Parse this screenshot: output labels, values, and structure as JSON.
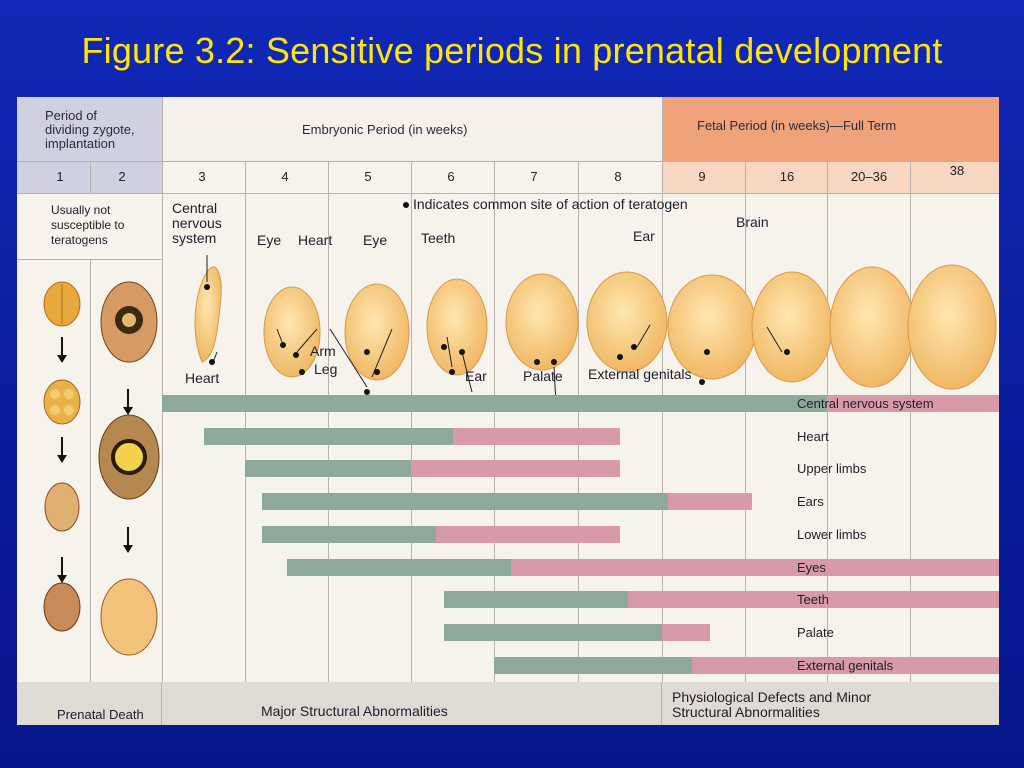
{
  "slide": {
    "title": "Figure 3.2: Sensitive periods in prenatal development"
  },
  "header": {
    "zygote_period": "Period of\ndividing zygote,\nimplantation",
    "embryonic_period": "Embryonic Period (in weeks)",
    "fetal_period": "Fetal Period (in weeks)—Full Term"
  },
  "weeks": [
    "1",
    "2",
    "3",
    "4",
    "5",
    "6",
    "7",
    "8",
    "9",
    "16",
    "20–36",
    "38"
  ],
  "notes": {
    "not_susceptible": "Usually not\nsusceptible to\nteratogens",
    "dot_legend": "Indicates common site of action of teratogen"
  },
  "site_labels": {
    "cns": "Central\nnervous\nsystem",
    "heart": "Heart",
    "eye1": "Eye",
    "heart2": "Heart",
    "eye2": "Eye",
    "teeth": "Teeth",
    "ear": "Ear",
    "brain": "Brain",
    "arm": "Arm",
    "leg": "Leg",
    "ear2": "Ear",
    "palate": "Palate",
    "external_genitals": "External genitals"
  },
  "chart_data": {
    "type": "bar",
    "x_units": "weeks",
    "categories": [
      "Central nervous system",
      "Heart",
      "Upper limbs",
      "Ears",
      "Lower limbs",
      "Eyes",
      "Teeth",
      "Palate",
      "External genitals"
    ],
    "series": [
      {
        "name": "Major Structural Abnormalities",
        "values": [
          [
            3,
            16
          ],
          [
            3.5,
            6.5
          ],
          [
            4,
            6
          ],
          [
            4.2,
            9.1
          ],
          [
            4.2,
            6.3
          ],
          [
            4.5,
            7.2
          ],
          [
            6.4,
            8.6
          ],
          [
            6.4,
            9
          ],
          [
            7,
            9.5
          ]
        ]
      },
      {
        "name": "Physiological Defects and Minor Structural Abnormalities",
        "values": [
          [
            16,
            38
          ],
          [
            6.5,
            8.5
          ],
          [
            6,
            8.5
          ],
          [
            9.1,
            10.5
          ],
          [
            6.3,
            8.5
          ],
          [
            7.2,
            38
          ],
          [
            8.6,
            38
          ],
          [
            9,
            9.8
          ],
          [
            9.5,
            38
          ]
        ]
      }
    ],
    "colors": {
      "major": "#8fa89c",
      "minor": "#d89aa9"
    }
  },
  "footer": {
    "prenatal_death": "Prenatal Death",
    "major": "Major Structural Abnormalities",
    "minor": "Physiological Defects and Minor\nStructural Abnormalities"
  }
}
